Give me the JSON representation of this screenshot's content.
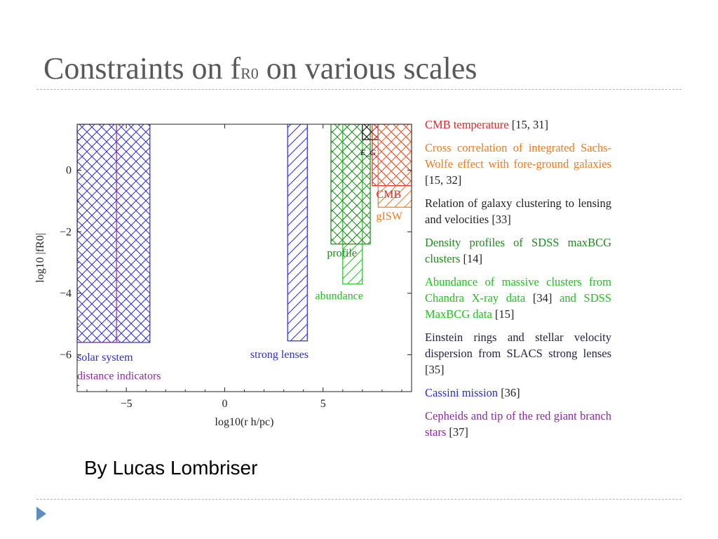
{
  "slide": {
    "title_main": "Constraints on f",
    "title_sub": "R0",
    "title_rest": " on various scales",
    "credit": "By Lucas Lombriser"
  },
  "chart_data": {
    "type": "bar",
    "xlabel": "log10(r h/pc)",
    "ylabel": "log10 |fR0|",
    "xlim": [
      -7.5,
      9.5
    ],
    "ylim": [
      -7.2,
      1.5
    ],
    "x_ticks": [
      -5,
      0,
      5
    ],
    "x_tick_labels": [
      "−5",
      "0",
      "5"
    ],
    "y_ticks": [
      0,
      -2,
      -4,
      -6
    ],
    "y_tick_labels": [
      "0",
      "−2",
      "−4",
      "−6"
    ],
    "regions": [
      {
        "id": "solar-system",
        "label": "solar system",
        "x": [
          -7.5,
          -3.8
        ],
        "y_min": -5.6,
        "color": "#2b2bd6",
        "hatch": "cross",
        "label_x": -7.5,
        "label_y": -6.2
      },
      {
        "id": "distance-indicators",
        "label": "distance indicators",
        "x": [
          -7.5,
          -5.5
        ],
        "y_min": -5.6,
        "color": "#8a2aa0",
        "hatch": "none",
        "label_x": -7.5,
        "label_y": -6.8
      },
      {
        "id": "strong-lenses",
        "label": "strong lenses",
        "x": [
          3.2,
          4.2
        ],
        "y_min": -5.55,
        "color": "#2b2bd6",
        "hatch": "single",
        "label_x": 1.3,
        "label_y": -6.1
      },
      {
        "id": "abundance",
        "label": "abundance",
        "x": [
          6.0,
          7.0
        ],
        "y_min": -3.7,
        "color": "#22c022",
        "hatch": "single",
        "label_x": 4.6,
        "label_y": -4.2
      },
      {
        "id": "profile",
        "label": "profile",
        "x": [
          5.4,
          7.4
        ],
        "y_min": -2.4,
        "color": "#1c8a1c",
        "hatch": "cross",
        "label_x": 5.2,
        "label_y": -2.8
      },
      {
        "id": "eg",
        "label": "E_G",
        "x": [
          7.0,
          7.8
        ],
        "y_min": 1.0,
        "color": "#111111",
        "hatch": "cross",
        "label_x": 6.9,
        "label_y": 0.5
      },
      {
        "id": "cmb",
        "label": "CMB",
        "x": [
          7.5,
          9.5
        ],
        "y_min": -0.5,
        "color": "#e02a2a",
        "hatch": "cross",
        "label_x": 7.7,
        "label_y": -0.9
      },
      {
        "id": "gisw",
        "label": "gISW",
        "x": [
          7.8,
          9.5
        ],
        "y_min": -1.2,
        "color": "#f07a1f",
        "hatch": "single",
        "label_x": 7.7,
        "label_y": -1.6
      }
    ],
    "legend": [
      {
        "text": "CMB temperature",
        "refs": "[15, 31]",
        "color": "#e02a2a"
      },
      {
        "text": "Cross correlation of integrated Sachs-Wolfe effect with fore-ground galaxies",
        "refs": "[15, 32]",
        "color": "#f07a1f"
      },
      {
        "text": "Relation of galaxy clustering to lensing and velocities",
        "refs": "[33]",
        "color": "#222222"
      },
      {
        "text": "Density profiles of SDSS maxBCG clusters",
        "refs": "[14]",
        "color": "#1c8a1c"
      },
      {
        "text": "Abundance of massive clusters from Chandra X-ray data",
        "refs": "[34]",
        "text2": "and SDSS MaxBCG data",
        "refs2": "[15]",
        "color": "#22c022"
      },
      {
        "text": "Einstein rings and stellar velocity dispersion from SLACS strong lenses",
        "refs": "[35]",
        "color": "#222244"
      },
      {
        "text": "Cassini mission",
        "refs": "[36]",
        "color": "#2b2bd6"
      },
      {
        "text": "Cepheids and tip of the red giant branch stars",
        "refs": "[37]",
        "color": "#8a2aa0"
      }
    ]
  }
}
